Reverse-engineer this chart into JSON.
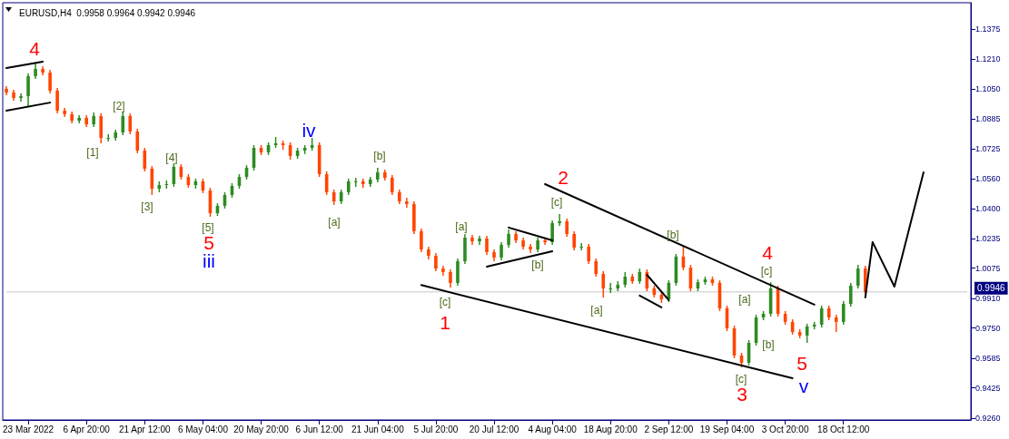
{
  "chart_data": {
    "type": "candlestick",
    "title": "EURUSD,H4  0.9958 0.9964 0.9942 0.9946",
    "categories": [
      null,
      null,
      null,
      "23 Mar 2022",
      null,
      null,
      null,
      null,
      null,
      null,
      null,
      "6 Apr 20:00",
      null,
      null,
      null,
      null,
      null,
      null,
      null,
      "21 Apr 12:00",
      null,
      null,
      null,
      null,
      null,
      null,
      null,
      "6 May 04:00",
      null,
      null,
      null,
      null,
      null,
      null,
      null,
      "20 May 20:00",
      null,
      null,
      null,
      null,
      null,
      null,
      null,
      "6 Jun 12:00",
      null,
      null,
      null,
      null,
      null,
      null,
      null,
      "21 Jun 04:00",
      null,
      null,
      null,
      null,
      null,
      null,
      null,
      "5 Jul 20:00",
      null,
      null,
      null,
      null,
      null,
      null,
      null,
      "20 Jul 12:00",
      null,
      null,
      null,
      null,
      null,
      null,
      null,
      "4 Aug 04:00",
      null,
      null,
      null,
      null,
      null,
      null,
      null,
      "18 Aug 20:00",
      null,
      null,
      null,
      null,
      null,
      null,
      null,
      "2 Sep 12:00",
      null,
      null,
      null,
      null,
      null,
      null,
      null,
      "19 Sep 04:00",
      null,
      null,
      null,
      null,
      null,
      null,
      null,
      "3 Oct 20:00",
      null,
      null,
      null,
      null,
      null,
      null,
      null,
      "18 Oct 12:00",
      null,
      null,
      null,
      null,
      null,
      null,
      null,
      null,
      null,
      null,
      null,
      null,
      null,
      null,
      null,
      null,
      null
    ],
    "colors": [
      "#ff4500",
      "#ff4500",
      "#2e8b22",
      "#2e8b22",
      "#2e8b22",
      "#ff4500",
      "#ff4500",
      "#ff4500",
      "#ff4500",
      "#ff4500",
      "#2e8b22",
      "#ff4500",
      "#2e8b22",
      "#ff4500",
      "#2e8b22",
      "#2e8b22",
      "#2e8b22",
      "#ff4500",
      "#ff4500",
      "#ff4500",
      "#ff4500",
      "#2e8b22",
      "#2e8b22",
      "#2e8b22",
      "#ff4500",
      "#ff4500",
      "#2e8b22",
      "#ff4500",
      "#ff4500",
      "#2e8b22",
      "#2e8b22",
      "#2e8b22",
      "#2e8b22",
      "#2e8b22",
      "#2e8b22",
      "#ff4500",
      "#2e8b22",
      "#2e8b22",
      "#ff4500",
      "#ff4500",
      "#2e8b22",
      "#2e8b22",
      "#2e8b22",
      "#ff4500",
      "#ff4500",
      "#ff4500",
      "#2e8b22",
      "#2e8b22",
      "#2e8b22",
      "#ff4500",
      "#2e8b22",
      "#2e8b22",
      "#ff4500",
      "#ff4500",
      "#ff4500",
      "#ff4500",
      "#ff4500",
      "#ff4500",
      "#ff4500",
      "#ff4500",
      "#ff4500",
      "#ff4500",
      "#2e8b22",
      "#2e8b22",
      "#ff4500",
      "#2e8b22",
      "#ff4500",
      "#ff4500",
      "#2e8b22",
      "#2e8b22",
      "#ff4500",
      "#ff4500",
      "#ff4500",
      "#2e8b22",
      "#ff4500",
      "#2e8b22",
      "#2e8b22",
      "#ff4500",
      "#ff4500",
      "#2e8b22",
      "#ff4500",
      "#ff4500",
      "#ff4500",
      "#2e8b22",
      "#2e8b22",
      "#2e8b22",
      "#ff4500",
      "#2e8b22",
      "#ff4500",
      "#ff4500",
      "#ff4500",
      "#2e8b22",
      "#2e8b22",
      "#ff4500",
      "#ff4500",
      "#2e8b22",
      "#2e8b22",
      "#ff4500",
      "#ff4500",
      "#ff4500",
      "#ff4500",
      "#ff4500",
      "#2e8b22",
      "#2e8b22",
      "#2e8b22",
      "#2e8b22",
      "#ff4500",
      "#ff4500",
      "#ff4500",
      "#ff4500",
      "#2e8b22",
      "#2e8b22",
      "#2e8b22",
      "#ff4500",
      "#ff4500",
      "#2e8b22",
      "#2e8b22",
      "#2e8b22",
      "#ff4500",
      null,
      null,
      null,
      null,
      null,
      null,
      null,
      null,
      null,
      null,
      null,
      null,
      null,
      null
    ],
    "ohlc": [
      [
        1.105,
        1.1064,
        1.1015,
        1.103
      ],
      [
        1.103,
        1.1045,
        1.0985,
        1.1
      ],
      [
        1.1,
        1.1025,
        1.0981,
        1.101
      ],
      [
        1.101,
        1.1133,
        1.0951,
        1.1119
      ],
      [
        1.1119,
        1.1193,
        1.1104,
        1.1158
      ],
      [
        1.1158,
        1.1173,
        1.1124,
        1.1138
      ],
      [
        1.1138,
        1.1153,
        1.1025,
        1.104
      ],
      [
        1.104,
        1.1055,
        1.0916,
        1.0931
      ],
      [
        1.0931,
        1.0946,
        1.0897,
        1.0912
      ],
      [
        1.0912,
        1.0926,
        1.0862,
        1.0877
      ],
      [
        1.0877,
        1.0907,
        1.0862,
        1.0892
      ],
      [
        1.0892,
        1.0907,
        1.0843,
        1.0857
      ],
      [
        1.0857,
        1.0921,
        1.0843,
        1.0902
      ],
      [
        1.0902,
        1.0916,
        1.0754,
        1.0783
      ],
      [
        1.0783,
        1.0803,
        1.0764,
        1.0783
      ],
      [
        1.0783,
        1.0828,
        1.0769,
        1.0813
      ],
      [
        1.0813,
        1.0926,
        1.0798,
        1.0902
      ],
      [
        1.0902,
        1.0916,
        1.0803,
        1.0818
      ],
      [
        1.0818,
        1.0833,
        1.07,
        1.0714
      ],
      [
        1.0714,
        1.0729,
        1.0601,
        1.0616
      ],
      [
        1.0616,
        1.063,
        1.0473,
        1.0507
      ],
      [
        1.0507,
        1.0547,
        1.0488,
        1.0527
      ],
      [
        1.0527,
        1.0552,
        1.0507,
        1.0532
      ],
      [
        1.0532,
        1.0645,
        1.0517,
        1.0626
      ],
      [
        1.0626,
        1.064,
        1.0557,
        1.0571
      ],
      [
        1.0571,
        1.0586,
        1.0512,
        1.0527
      ],
      [
        1.0527,
        1.0562,
        1.0507,
        1.0547
      ],
      [
        1.0547,
        1.0562,
        1.0483,
        1.0497
      ],
      [
        1.0497,
        1.0512,
        1.0355,
        1.0374
      ],
      [
        1.0374,
        1.0428,
        1.0359,
        1.0414
      ],
      [
        1.0414,
        1.0488,
        1.0399,
        1.0473
      ],
      [
        1.0473,
        1.0537,
        1.0458,
        1.0522
      ],
      [
        1.0522,
        1.0586,
        1.0507,
        1.0571
      ],
      [
        1.0571,
        1.0635,
        1.0557,
        1.0621
      ],
      [
        1.0621,
        1.0744,
        1.0606,
        1.0729
      ],
      [
        1.0729,
        1.0744,
        1.069,
        1.0705
      ],
      [
        1.0705,
        1.0759,
        1.069,
        1.0744
      ],
      [
        1.0744,
        1.0788,
        1.0729,
        1.0754
      ],
      [
        1.0754,
        1.0769,
        1.0719,
        1.0744
      ],
      [
        1.0744,
        1.0759,
        1.0665,
        1.0685
      ],
      [
        1.0685,
        1.0729,
        1.067,
        1.0714
      ],
      [
        1.0714,
        1.0744,
        1.0695,
        1.0729
      ],
      [
        1.0729,
        1.0783,
        1.0714,
        1.0744
      ],
      [
        1.0744,
        1.0759,
        1.0571,
        1.0586
      ],
      [
        1.0586,
        1.0601,
        1.0473,
        1.0488
      ],
      [
        1.0488,
        1.0502,
        1.0419,
        1.0438
      ],
      [
        1.0438,
        1.0502,
        1.0424,
        1.0488
      ],
      [
        1.0488,
        1.0562,
        1.0473,
        1.0547
      ],
      [
        1.0547,
        1.0566,
        1.0517,
        1.0547
      ],
      [
        1.0547,
        1.0562,
        1.0512,
        1.0532
      ],
      [
        1.0532,
        1.0571,
        1.0517,
        1.0557
      ],
      [
        1.0557,
        1.0621,
        1.0542,
        1.0596
      ],
      [
        1.0596,
        1.0611,
        1.0552,
        1.0566
      ],
      [
        1.0566,
        1.0581,
        1.0473,
        1.0488
      ],
      [
        1.0488,
        1.0502,
        1.0424,
        1.0438
      ],
      [
        1.0438,
        1.0458,
        1.0404,
        1.0424
      ],
      [
        1.0424,
        1.0438,
        1.0261,
        1.0276
      ],
      [
        1.0276,
        1.029,
        1.0162,
        1.0177
      ],
      [
        1.0177,
        1.0192,
        1.0123,
        1.0142
      ],
      [
        1.0142,
        1.0157,
        1.0059,
        1.0073
      ],
      [
        1.0073,
        1.0088,
        1.0034,
        1.0054
      ],
      [
        1.0054,
        1.0068,
        0.997,
        0.9995
      ],
      [
        0.9995,
        1.0128,
        0.998,
        1.0113
      ],
      [
        1.0113,
        1.0261,
        1.0098,
        1.0241
      ],
      [
        1.0241,
        1.0256,
        1.0202,
        1.0221
      ],
      [
        1.0221,
        1.0251,
        1.0202,
        1.0236
      ],
      [
        1.0236,
        1.0251,
        1.0147,
        1.0162
      ],
      [
        1.0162,
        1.0177,
        1.0113,
        1.0133
      ],
      [
        1.0133,
        1.0216,
        1.0118,
        1.0202
      ],
      [
        1.0202,
        1.0286,
        1.0187,
        1.0261
      ],
      [
        1.0261,
        1.0276,
        1.0211,
        1.0226
      ],
      [
        1.0226,
        1.0241,
        1.0177,
        1.0192
      ],
      [
        1.0192,
        1.0207,
        1.0157,
        1.0177
      ],
      [
        1.0177,
        1.0241,
        1.0162,
        1.0226
      ],
      [
        1.0226,
        1.0241,
        1.0202,
        1.0216
      ],
      [
        1.0216,
        1.0335,
        1.0202,
        1.032
      ],
      [
        1.032,
        1.0369,
        1.0305,
        1.033
      ],
      [
        1.033,
        1.0345,
        1.0246,
        1.0261
      ],
      [
        1.0261,
        1.0276,
        1.0172,
        1.0187
      ],
      [
        1.0187,
        1.0211,
        1.0172,
        1.0192
      ],
      [
        1.0192,
        1.0207,
        1.0098,
        1.0113
      ],
      [
        1.0113,
        1.0128,
        1.0029,
        1.0044
      ],
      [
        1.0044,
        1.0059,
        0.9916,
        0.9965
      ],
      [
        0.9965,
        0.9995,
        0.994,
        0.9965
      ],
      [
        0.9965,
        1.0004,
        0.995,
        0.9985
      ],
      [
        0.9985,
        1.0054,
        0.997,
        1.0029
      ],
      [
        1.0029,
        1.0044,
        0.999,
        1.0004
      ],
      [
        1.0004,
        1.0073,
        0.999,
        1.0054
      ],
      [
        1.0054,
        1.0068,
        0.995,
        0.9965
      ],
      [
        0.9965,
        0.998,
        0.9916,
        0.993
      ],
      [
        0.993,
        0.9945,
        0.9886,
        0.9906
      ],
      [
        0.9906,
        1.0009,
        0.9891,
        0.9995
      ],
      [
        0.9995,
        1.0152,
        0.998,
        1.0138
      ],
      [
        1.0138,
        1.0197,
        1.0064,
        1.0078
      ],
      [
        1.0078,
        1.0093,
        0.995,
        0.9965
      ],
      [
        0.9965,
        1.0014,
        0.995,
        0.9999
      ],
      [
        0.9999,
        1.0029,
        0.9985,
        1.0014
      ],
      [
        1.0014,
        1.0029,
        0.998,
        0.9995
      ],
      [
        0.9995,
        1.0009,
        0.9842,
        0.9857
      ],
      [
        0.9857,
        0.9871,
        0.9733,
        0.9748
      ],
      [
        0.9748,
        0.9763,
        0.9585,
        0.96
      ],
      [
        0.96,
        0.9615,
        0.9536,
        0.9561
      ],
      [
        0.9561,
        0.9684,
        0.9546,
        0.9669
      ],
      [
        0.9669,
        0.9822,
        0.9654,
        0.9807
      ],
      [
        0.9807,
        0.9842,
        0.9792,
        0.9827
      ],
      [
        0.9827,
        0.9999,
        0.9812,
        0.9965
      ],
      [
        0.9965,
        0.998,
        0.9812,
        0.9827
      ],
      [
        0.9827,
        0.9842,
        0.9768,
        0.9783
      ],
      [
        0.9783,
        0.9797,
        0.9714,
        0.9728
      ],
      [
        0.9728,
        0.9743,
        0.9694,
        0.9709
      ],
      [
        0.9709,
        0.9773,
        0.9669,
        0.9758
      ],
      [
        0.9758,
        0.9783,
        0.9743,
        0.9768
      ],
      [
        0.9768,
        0.9871,
        0.9753,
        0.9857
      ],
      [
        0.9857,
        0.9871,
        0.9792,
        0.9807
      ],
      [
        0.9807,
        0.9822,
        0.9728,
        0.9783
      ],
      [
        0.9783,
        0.9896,
        0.9768,
        0.9881
      ],
      [
        0.9881,
        0.9995,
        0.9866,
        0.998
      ],
      [
        0.998,
        1.0093,
        0.9965,
        1.0073
      ],
      [
        1.0073,
        1.0088,
        0.9935,
        0.9946
      ],
      null,
      null,
      null,
      null,
      null,
      null,
      null,
      null,
      null,
      null,
      null,
      null,
      null,
      null
    ],
    "series": [
      {
        "type": "line",
        "color": "#000000",
        "values": [
          1.1163,
          null,
          null,
          null,
          null,
          1.1198,
          null,
          null,
          null,
          null,
          null,
          null,
          null,
          null,
          null,
          null,
          null,
          null,
          null,
          null,
          null,
          null,
          null,
          null,
          null,
          null,
          null,
          null,
          null,
          null,
          null,
          null,
          null,
          null,
          null,
          null,
          null,
          null,
          null,
          null,
          null,
          null,
          null,
          null,
          null,
          null,
          null,
          null,
          null,
          null,
          null,
          null,
          null,
          null,
          null,
          null,
          null,
          null,
          null,
          null,
          null,
          null,
          null,
          null,
          null,
          null,
          null,
          null,
          null,
          null,
          null,
          null,
          null,
          null,
          null,
          null,
          null,
          null,
          null,
          null,
          null,
          null,
          null,
          null,
          null,
          null,
          null,
          null,
          null,
          null,
          null,
          null,
          null,
          null,
          null,
          null,
          null,
          null,
          null,
          null,
          null,
          null,
          null,
          null,
          null,
          null,
          null,
          null,
          null,
          null,
          null,
          null,
          null,
          null,
          null,
          null,
          null,
          null,
          null,
          null,
          null,
          null,
          null,
          null,
          null,
          null,
          null,
          null,
          null,
          null,
          null,
          null,
          null
        ]
      },
      {
        "type": "line",
        "color": "#000000",
        "values": [
          1.0931,
          null,
          null,
          null,
          null,
          null,
          1.0975,
          null,
          null,
          null,
          null,
          null,
          null,
          null,
          null,
          null,
          null,
          null,
          null,
          null,
          null,
          null,
          null,
          null,
          null,
          null,
          null,
          null,
          null,
          null,
          null,
          null,
          null,
          null,
          null,
          null,
          null,
          null,
          null,
          null,
          null,
          null,
          null,
          null,
          null,
          null,
          null,
          null,
          null,
          null,
          null,
          null,
          null,
          null,
          null,
          null,
          null,
          null,
          null,
          null,
          null,
          null,
          null,
          null,
          null,
          null,
          null,
          null,
          null,
          null,
          null,
          null,
          null,
          null,
          null,
          null,
          null,
          null,
          null,
          null,
          null,
          null,
          null,
          null,
          null,
          null,
          null,
          null,
          null,
          null,
          null,
          null,
          null,
          null,
          null,
          null,
          null,
          null,
          null,
          null,
          null,
          null,
          null,
          null,
          null,
          null,
          null,
          null,
          null,
          null,
          null,
          null,
          null,
          null,
          null,
          null,
          null,
          null,
          null,
          null,
          null,
          null,
          null,
          null,
          null,
          null,
          null,
          null,
          null,
          null,
          null,
          null,
          null
        ]
      },
      {
        "type": "line",
        "color": "#000000",
        "values": [
          null,
          null,
          null,
          null,
          null,
          null,
          null,
          null,
          null,
          null,
          null,
          null,
          null,
          null,
          null,
          null,
          null,
          null,
          null,
          null,
          null,
          null,
          null,
          null,
          null,
          null,
          null,
          null,
          null,
          null,
          null,
          null,
          null,
          null,
          null,
          null,
          null,
          null,
          null,
          null,
          null,
          null,
          null,
          null,
          null,
          null,
          null,
          null,
          null,
          null,
          null,
          null,
          null,
          null,
          null,
          null,
          null,
          null,
          null,
          null,
          null,
          null,
          null,
          null,
          null,
          null,
          null,
          null,
          null,
          null,
          null,
          null,
          null,
          null,
          1.0532,
          null,
          null,
          null,
          null,
          null,
          null,
          null,
          null,
          null,
          null,
          null,
          null,
          null,
          null,
          null,
          null,
          null,
          null,
          null,
          null,
          null,
          null,
          null,
          null,
          null,
          null,
          null,
          null,
          null,
          null,
          null,
          null,
          null,
          null,
          null,
          null,
          0.9877,
          null,
          null,
          null,
          null,
          null,
          null,
          null,
          null,
          null,
          null,
          null,
          null,
          null,
          null,
          null,
          null,
          null,
          null,
          null,
          null,
          null
        ]
      },
      {
        "type": "line",
        "color": "#000000",
        "values": [
          null,
          null,
          null,
          null,
          null,
          null,
          null,
          null,
          null,
          null,
          null,
          null,
          null,
          null,
          null,
          null,
          null,
          null,
          null,
          null,
          null,
          null,
          null,
          null,
          null,
          null,
          null,
          null,
          null,
          null,
          null,
          null,
          null,
          null,
          null,
          null,
          null,
          null,
          null,
          null,
          null,
          null,
          null,
          null,
          null,
          null,
          null,
          null,
          null,
          null,
          null,
          null,
          null,
          null,
          null,
          null,
          null,
          0.9983,
          null,
          null,
          null,
          null,
          null,
          null,
          null,
          null,
          null,
          null,
          null,
          null,
          null,
          null,
          null,
          null,
          null,
          null,
          null,
          null,
          null,
          null,
          null,
          null,
          null,
          null,
          null,
          null,
          null,
          null,
          null,
          null,
          null,
          null,
          null,
          null,
          null,
          null,
          null,
          null,
          null,
          null,
          null,
          null,
          null,
          null,
          null,
          null,
          null,
          null,
          0.9477,
          null,
          null,
          null,
          null,
          null,
          null,
          null,
          null,
          null,
          null,
          null,
          null,
          null,
          null,
          null,
          null,
          null,
          null,
          null,
          null,
          null,
          null,
          null,
          null
        ]
      },
      {
        "type": "line",
        "color": "#000000",
        "values": [
          null,
          null,
          null,
          null,
          null,
          null,
          null,
          null,
          null,
          null,
          null,
          null,
          null,
          null,
          null,
          null,
          null,
          null,
          null,
          null,
          null,
          null,
          null,
          null,
          null,
          null,
          null,
          null,
          null,
          null,
          null,
          null,
          null,
          null,
          null,
          null,
          null,
          null,
          null,
          null,
          null,
          null,
          null,
          null,
          null,
          null,
          null,
          null,
          null,
          null,
          null,
          null,
          null,
          null,
          null,
          null,
          null,
          null,
          null,
          null,
          null,
          null,
          null,
          null,
          null,
          null,
          null,
          null,
          null,
          1.0296,
          null,
          null,
          null,
          null,
          null,
          1.0226,
          null,
          null,
          null,
          null,
          null,
          null,
          null,
          null,
          null,
          null,
          null,
          null,
          null,
          null,
          null,
          null,
          null,
          null,
          null,
          null,
          null,
          null,
          null,
          null,
          null,
          null,
          null,
          null,
          null,
          null,
          null,
          null,
          null,
          null,
          null,
          null,
          null,
          null,
          null,
          null,
          null,
          null,
          null,
          null,
          null,
          null,
          null,
          null,
          null,
          null,
          null,
          null,
          null,
          null,
          null,
          null,
          null
        ]
      },
      {
        "type": "line",
        "color": "#000000",
        "values": [
          null,
          null,
          null,
          null,
          null,
          null,
          null,
          null,
          null,
          null,
          null,
          null,
          null,
          null,
          null,
          null,
          null,
          null,
          null,
          null,
          null,
          null,
          null,
          null,
          null,
          null,
          null,
          null,
          null,
          null,
          null,
          null,
          null,
          null,
          null,
          null,
          null,
          null,
          null,
          null,
          null,
          null,
          null,
          null,
          null,
          null,
          null,
          null,
          null,
          null,
          null,
          null,
          null,
          null,
          null,
          null,
          null,
          null,
          null,
          null,
          null,
          null,
          null,
          null,
          null,
          null,
          1.0083,
          null,
          null,
          null,
          null,
          null,
          null,
          null,
          null,
          1.0167,
          null,
          null,
          null,
          null,
          null,
          null,
          null,
          null,
          null,
          null,
          null,
          null,
          null,
          null,
          null,
          null,
          null,
          null,
          null,
          null,
          null,
          null,
          null,
          null,
          null,
          null,
          null,
          null,
          null,
          null,
          null,
          null,
          null,
          null,
          null,
          null,
          null,
          null,
          null,
          null,
          null,
          null,
          null,
          null,
          null,
          null,
          null,
          null,
          null,
          null,
          null,
          null,
          null,
          null,
          null,
          null,
          null
        ]
      },
      {
        "type": "line",
        "color": "#000000",
        "values": [
          null,
          null,
          null,
          null,
          null,
          null,
          null,
          null,
          null,
          null,
          null,
          null,
          null,
          null,
          null,
          null,
          null,
          null,
          null,
          null,
          null,
          null,
          null,
          null,
          null,
          null,
          null,
          null,
          null,
          null,
          null,
          null,
          null,
          null,
          null,
          null,
          null,
          null,
          null,
          null,
          null,
          null,
          null,
          null,
          null,
          null,
          null,
          null,
          null,
          null,
          null,
          null,
          null,
          null,
          null,
          null,
          null,
          null,
          null,
          null,
          null,
          null,
          null,
          null,
          null,
          null,
          null,
          null,
          null,
          null,
          null,
          null,
          null,
          null,
          null,
          null,
          null,
          null,
          null,
          null,
          null,
          null,
          null,
          null,
          null,
          null,
          null,
          null,
          1.0039,
          null,
          null,
          0.9901,
          null,
          null,
          null,
          null,
          null,
          null,
          null,
          null,
          null,
          null,
          null,
          null,
          null,
          null,
          null,
          null,
          null,
          null,
          null,
          null,
          null,
          null,
          null,
          null,
          null,
          null,
          null,
          null,
          null,
          null,
          null,
          null,
          null,
          null,
          null,
          null,
          null,
          null,
          null,
          null,
          null
        ]
      },
      {
        "type": "line",
        "color": "#000000",
        "values": [
          null,
          null,
          null,
          null,
          null,
          null,
          null,
          null,
          null,
          null,
          null,
          null,
          null,
          null,
          null,
          null,
          null,
          null,
          null,
          null,
          null,
          null,
          null,
          null,
          null,
          null,
          null,
          null,
          null,
          null,
          null,
          null,
          null,
          null,
          null,
          null,
          null,
          null,
          null,
          null,
          null,
          null,
          null,
          null,
          null,
          null,
          null,
          null,
          null,
          null,
          null,
          null,
          null,
          null,
          null,
          null,
          null,
          null,
          null,
          null,
          null,
          null,
          null,
          null,
          null,
          null,
          null,
          null,
          null,
          null,
          null,
          null,
          null,
          null,
          null,
          null,
          null,
          null,
          null,
          null,
          null,
          null,
          null,
          null,
          null,
          null,
          null,
          0.9926,
          null,
          null,
          0.9862,
          null,
          null,
          null,
          null,
          null,
          null,
          null,
          null,
          null,
          null,
          null,
          null,
          null,
          null,
          null,
          null,
          null,
          null,
          null,
          null,
          null,
          null,
          null,
          null,
          null,
          null,
          null,
          null,
          null,
          null,
          null,
          null,
          null,
          null,
          null,
          null,
          null,
          null,
          null,
          null,
          null,
          null
        ]
      },
      {
        "type": "line",
        "color": "#000000",
        "values": [
          null,
          null,
          null,
          null,
          null,
          null,
          null,
          null,
          null,
          null,
          null,
          null,
          null,
          null,
          null,
          null,
          null,
          null,
          null,
          null,
          null,
          null,
          null,
          null,
          null,
          null,
          null,
          null,
          null,
          null,
          null,
          null,
          null,
          null,
          null,
          null,
          null,
          null,
          null,
          null,
          null,
          null,
          null,
          null,
          null,
          null,
          null,
          null,
          null,
          null,
          null,
          null,
          null,
          null,
          null,
          null,
          null,
          null,
          null,
          null,
          null,
          null,
          null,
          null,
          null,
          null,
          null,
          null,
          null,
          null,
          null,
          null,
          null,
          null,
          null,
          null,
          null,
          null,
          null,
          null,
          null,
          null,
          null,
          null,
          null,
          null,
          null,
          null,
          null,
          null,
          null,
          null,
          null,
          null,
          null,
          null,
          null,
          null,
          null,
          null,
          null,
          null,
          null,
          null,
          null,
          null,
          null,
          null,
          null,
          null,
          null,
          null,
          null,
          null,
          null,
          null,
          null,
          null,
          0.9916,
          1.0217,
          null,
          null,
          0.9975,
          null,
          null,
          null,
          1.0596,
          null,
          null,
          null,
          null,
          null,
          null
        ]
      }
    ],
    "ylim": [
      0.925,
      1.1518
    ],
    "yticks": [
      1.1375,
      {
        "value": 1.121,
        "label": "1.1210"
      },
      {
        "value": 1.105,
        "label": "1.1050"
      },
      1.0885,
      1.0725,
      {
        "value": 1.056,
        "label": "1.0560"
      },
      {
        "value": 1.04,
        "label": "1.0400"
      },
      1.0235,
      1.0075,
      {
        "value": 0.991,
        "label": "0.9910"
      },
      {
        "value": 0.975,
        "label": "0.9750"
      },
      0.9585,
      0.9425,
      {
        "value": 0.926,
        "label": "0.9260"
      }
    ],
    "ref_lines": [
      {
        "axis": "y",
        "value": 0.9946,
        "label": "0.9946",
        "color": "#c8c8c8"
      }
    ],
    "annotations": [
      "4",
      "5",
      "1",
      "2",
      "3",
      "4",
      "5",
      "iii",
      "iv",
      "v",
      "[1]",
      "[2]",
      "[3]",
      "[4]",
      "[5]",
      "[a]",
      "[b]",
      "[c]",
      "[a]",
      "[b]",
      "[c]",
      "[a]",
      "[b]",
      "[a]",
      "[c]",
      "[b]",
      "[c]"
    ],
    "grid": false,
    "marker": "none",
    "line_style": "solid"
  }
}
